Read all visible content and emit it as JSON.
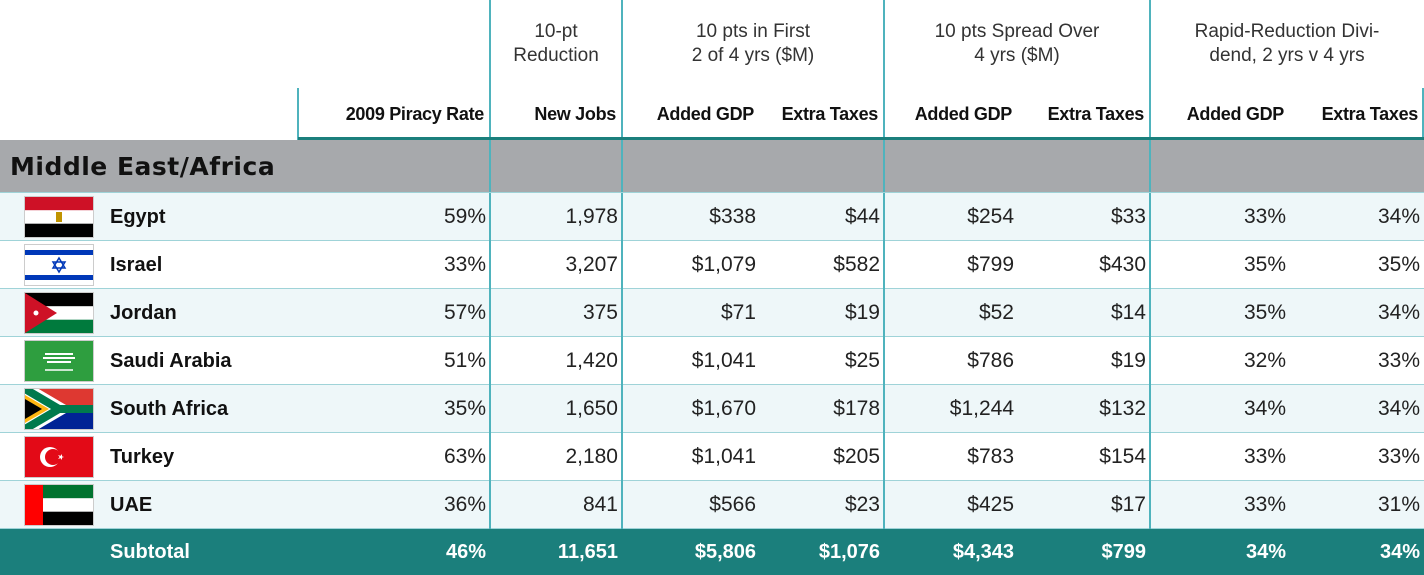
{
  "groups": [
    {
      "lines": [
        "10-pt",
        "Reduction"
      ]
    },
    {
      "lines": [
        "10 pts in First",
        "2 of 4 yrs ($M)"
      ]
    },
    {
      "lines": [
        "10 pts Spread Over",
        "4 yrs ($M)"
      ]
    },
    {
      "lines": [
        "Rapid-Reduction Divi-",
        "dend, 2 yrs v 4 yrs"
      ]
    }
  ],
  "columns": [
    "2009 Piracy Rate",
    "New Jobs",
    "Added GDP",
    "Extra Taxes",
    "Added GDP",
    "Extra Taxes",
    "Added GDP",
    "Extra Taxes"
  ],
  "section": "Middle East/Africa",
  "rows": [
    {
      "country": "Egypt",
      "values": [
        "59%",
        "1,978",
        "$338",
        "$44",
        "$254",
        "$33",
        "33%",
        "34%"
      ]
    },
    {
      "country": "Israel",
      "values": [
        "33%",
        "3,207",
        "$1,079",
        "$582",
        "$799",
        "$430",
        "35%",
        "35%"
      ]
    },
    {
      "country": "Jordan",
      "values": [
        "57%",
        "375",
        "$71",
        "$19",
        "$52",
        "$14",
        "35%",
        "34%"
      ]
    },
    {
      "country": "Saudi Arabia",
      "values": [
        "51%",
        "1,420",
        "$1,041",
        "$25",
        "$786",
        "$19",
        "32%",
        "33%"
      ]
    },
    {
      "country": "South Africa",
      "values": [
        "35%",
        "1,650",
        "$1,670",
        "$178",
        "$1,244",
        "$132",
        "34%",
        "34%"
      ]
    },
    {
      "country": "Turkey",
      "values": [
        "63%",
        "2,180",
        "$1,041",
        "$205",
        "$783",
        "$154",
        "33%",
        "33%"
      ]
    },
    {
      "country": "UAE",
      "values": [
        "36%",
        "841",
        "$566",
        "$23",
        "$425",
        "$17",
        "33%",
        "31%"
      ]
    }
  ],
  "subtotal": {
    "label": "Subtotal",
    "values": [
      "46%",
      "11,651",
      "$5,806",
      "$1,076",
      "$4,343",
      "$799",
      "34%",
      "34%"
    ]
  }
}
